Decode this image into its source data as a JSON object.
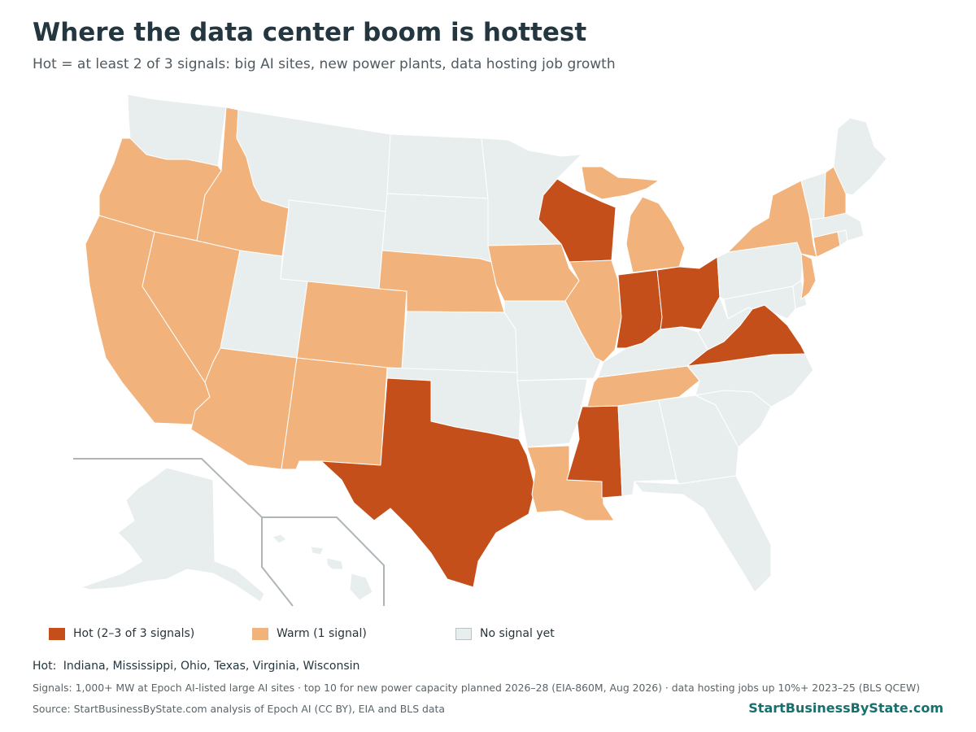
{
  "title": "Where the data center boom is hottest",
  "subtitle": "Hot = at least 2 of 3 signals: big AI sites, new power plants, data hosting job growth",
  "colors": {
    "hot": "#c44f1a",
    "warm": "#f2b27b",
    "none": "#e8eeee",
    "brand": "#17706e"
  },
  "legend": {
    "hot": "Hot (2–3 of 3 signals)",
    "warm": "Warm (1 signal)",
    "none": "No signal yet"
  },
  "hot_list": {
    "label": "Hot:",
    "states": "Indiana, Mississippi, Ohio, Texas, Virginia, Wisconsin"
  },
  "signals_note": "Signals: 1,000+ MW at Epoch AI-listed large AI sites · top 10 for new power capacity planned 2026–28 (EIA-860M, Aug 2026) · data hosting jobs up 10%+ 2023–25 (BLS QCEW)",
  "source": "Source: StartBusinessByState.com analysis of Epoch AI (CC BY), EIA and BLS data",
  "brand": "StartBusinessByState.com",
  "categories": {
    "hot": [
      "Indiana",
      "Mississippi",
      "Ohio",
      "Texas",
      "Virginia",
      "Wisconsin"
    ],
    "warm": [
      "Oregon",
      "California",
      "Idaho",
      "Nevada",
      "Arizona",
      "Colorado",
      "New Mexico",
      "Nebraska",
      "Iowa",
      "Illinois",
      "Michigan",
      "Tennessee",
      "Louisiana",
      "New York",
      "New Hampshire",
      "Connecticut",
      "New Jersey"
    ],
    "none": [
      "Washington",
      "Montana",
      "Wyoming",
      "Utah",
      "North Dakota",
      "South Dakota",
      "Kansas",
      "Oklahoma",
      "Minnesota",
      "Missouri",
      "Arkansas",
      "Kentucky",
      "Alabama",
      "Georgia",
      "Florida",
      "South Carolina",
      "North Carolina",
      "West Virginia",
      "Pennsylvania",
      "Maryland",
      "Delaware",
      "Vermont",
      "Maine",
      "Massachusetts",
      "Rhode Island",
      "Alaska",
      "Hawaii"
    ]
  }
}
